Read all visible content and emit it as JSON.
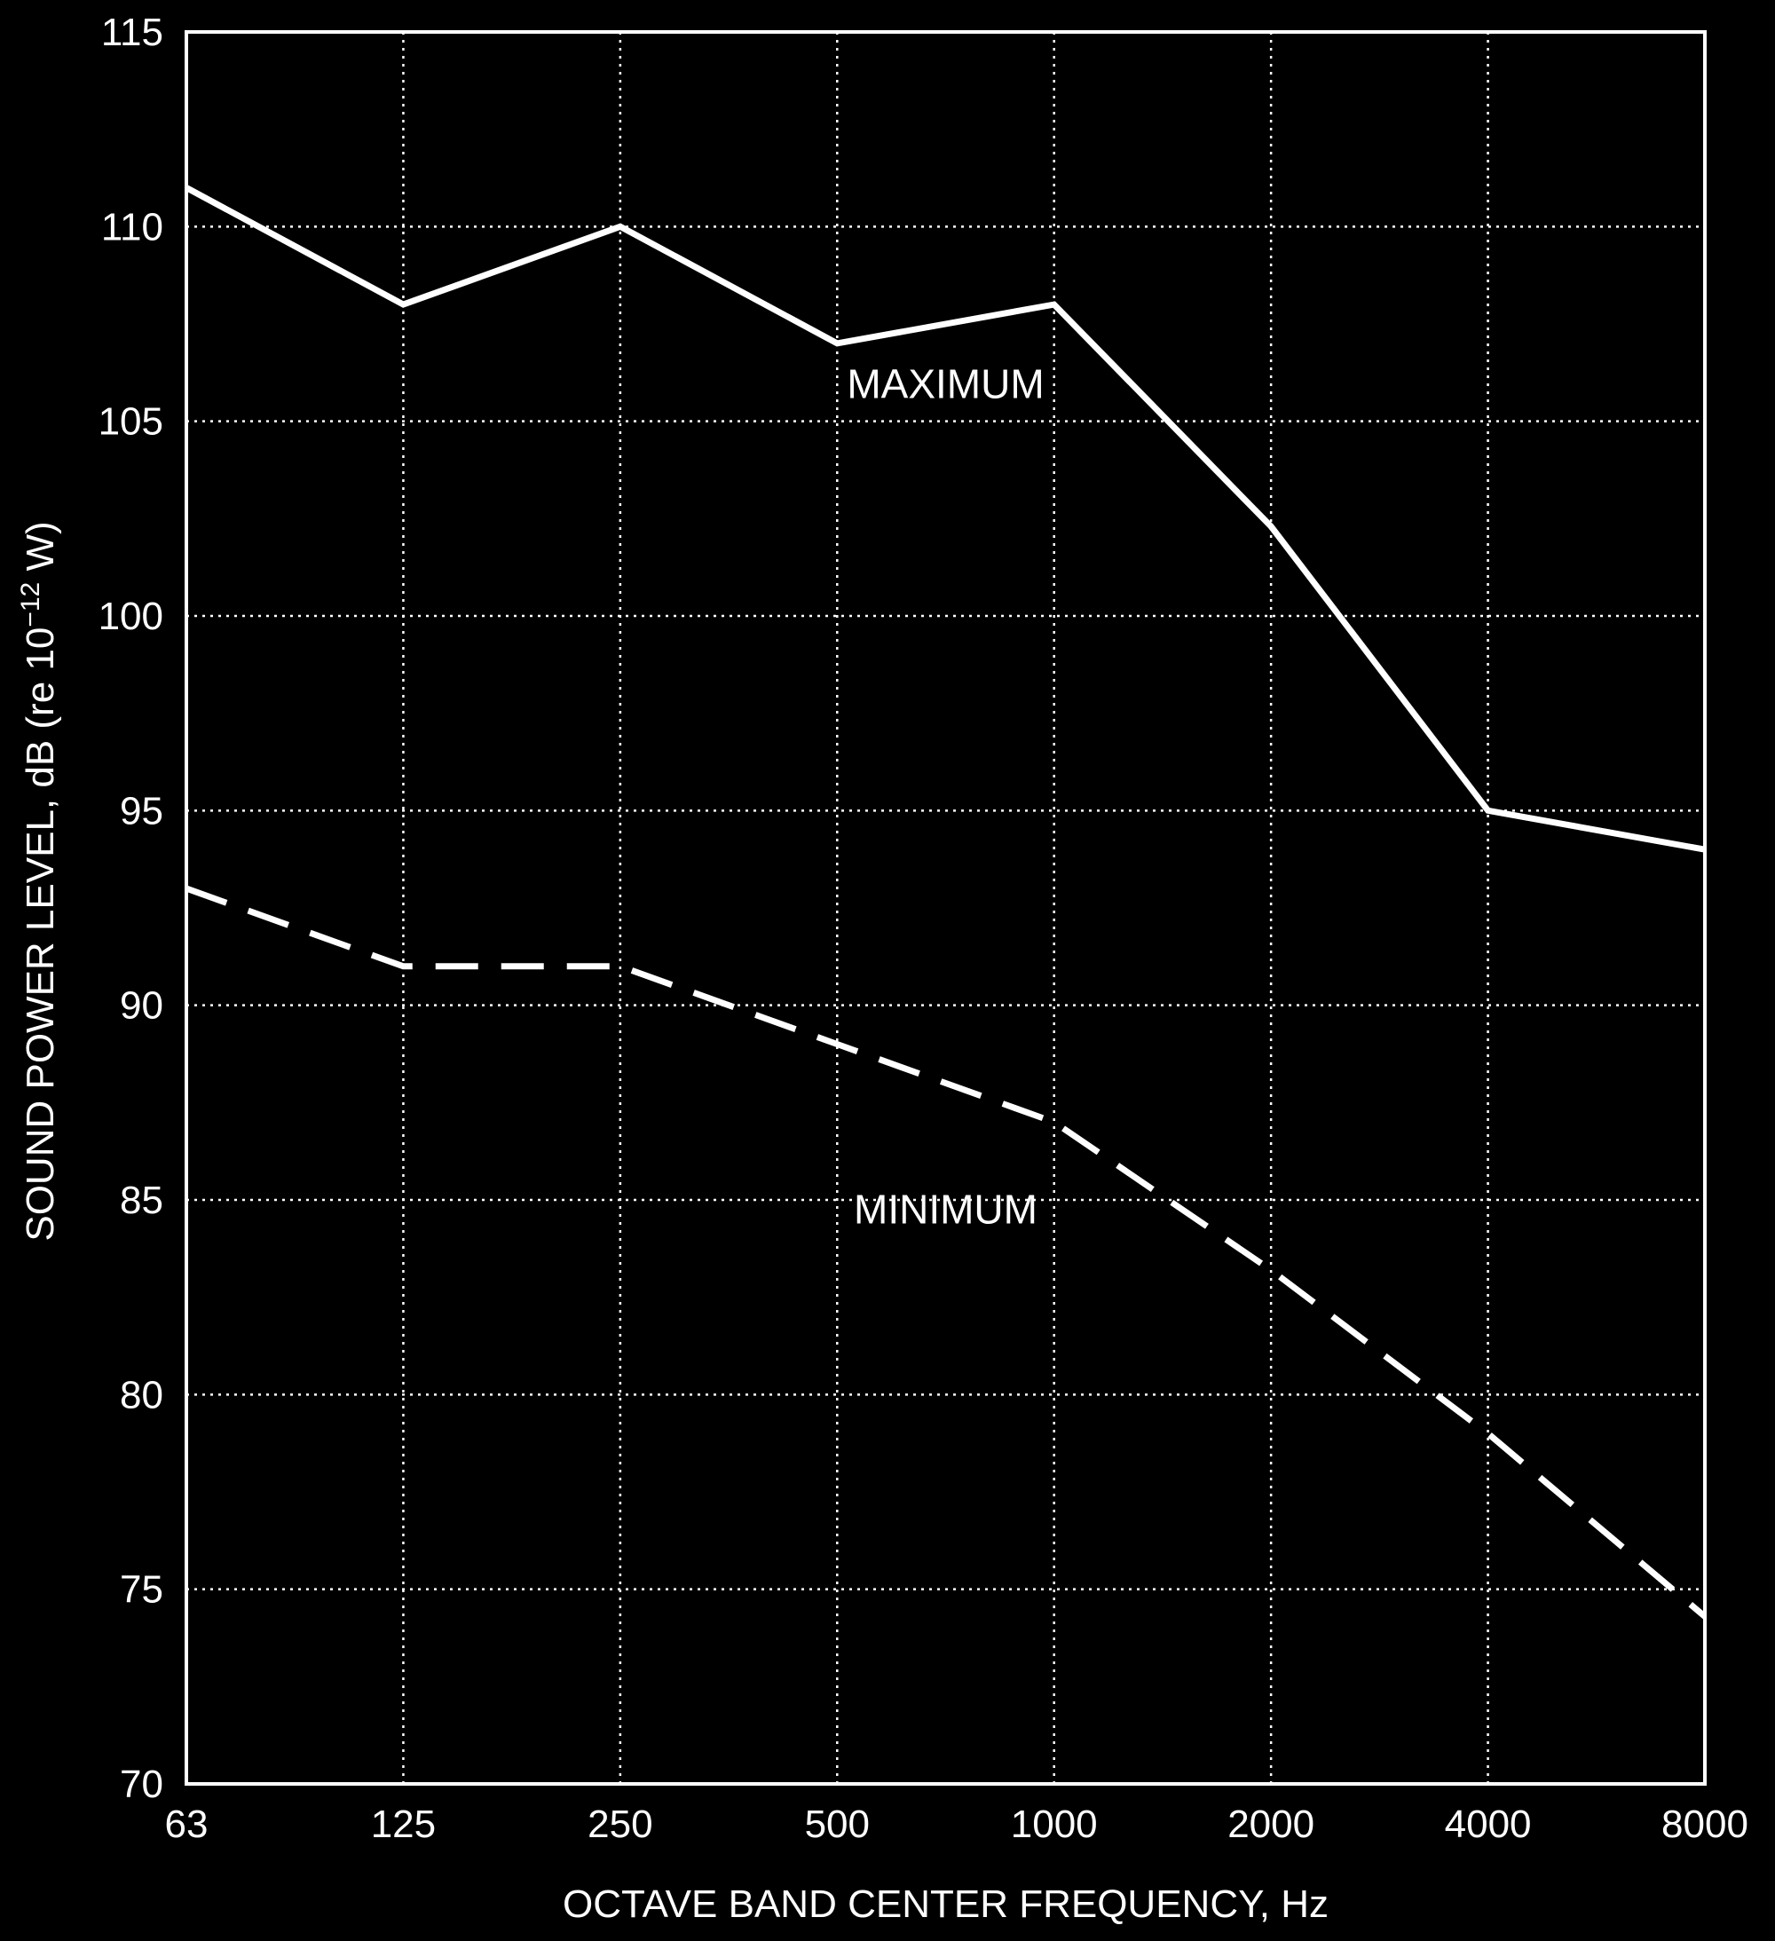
{
  "chart_data": {
    "type": "line",
    "x_categories": [
      "63",
      "125",
      "250",
      "500",
      "1000",
      "2000",
      "4000",
      "8000"
    ],
    "xlabel": "OCTAVE BAND CENTER FREQUENCY, Hz",
    "ylabel_main": "SOUND POWER LEVEL, dB (re 10",
    "ylabel_sup": "−12",
    "ylabel_tail": " W)",
    "ylim": [
      70,
      115
    ],
    "y_ticks": [
      70,
      75,
      80,
      85,
      90,
      95,
      100,
      105,
      110,
      115
    ],
    "grid": true,
    "grid_style": "dotted",
    "series": [
      {
        "name": "MAXIMUM",
        "line_style": "solid",
        "values": [
          111,
          108,
          110,
          107,
          108,
          102.3,
          95,
          94
        ],
        "label_anchor_index": 3.5,
        "label_offset_value": -1.9
      },
      {
        "name": "MINIMUM",
        "line_style": "dashed",
        "values": [
          93,
          91,
          91,
          89,
          87,
          83.2,
          79,
          74.3
        ],
        "label_anchor_index": 3.5,
        "label_offset_value": -3.6
      }
    ],
    "colors": {
      "background": "#000000",
      "foreground": "#ffffff"
    }
  }
}
